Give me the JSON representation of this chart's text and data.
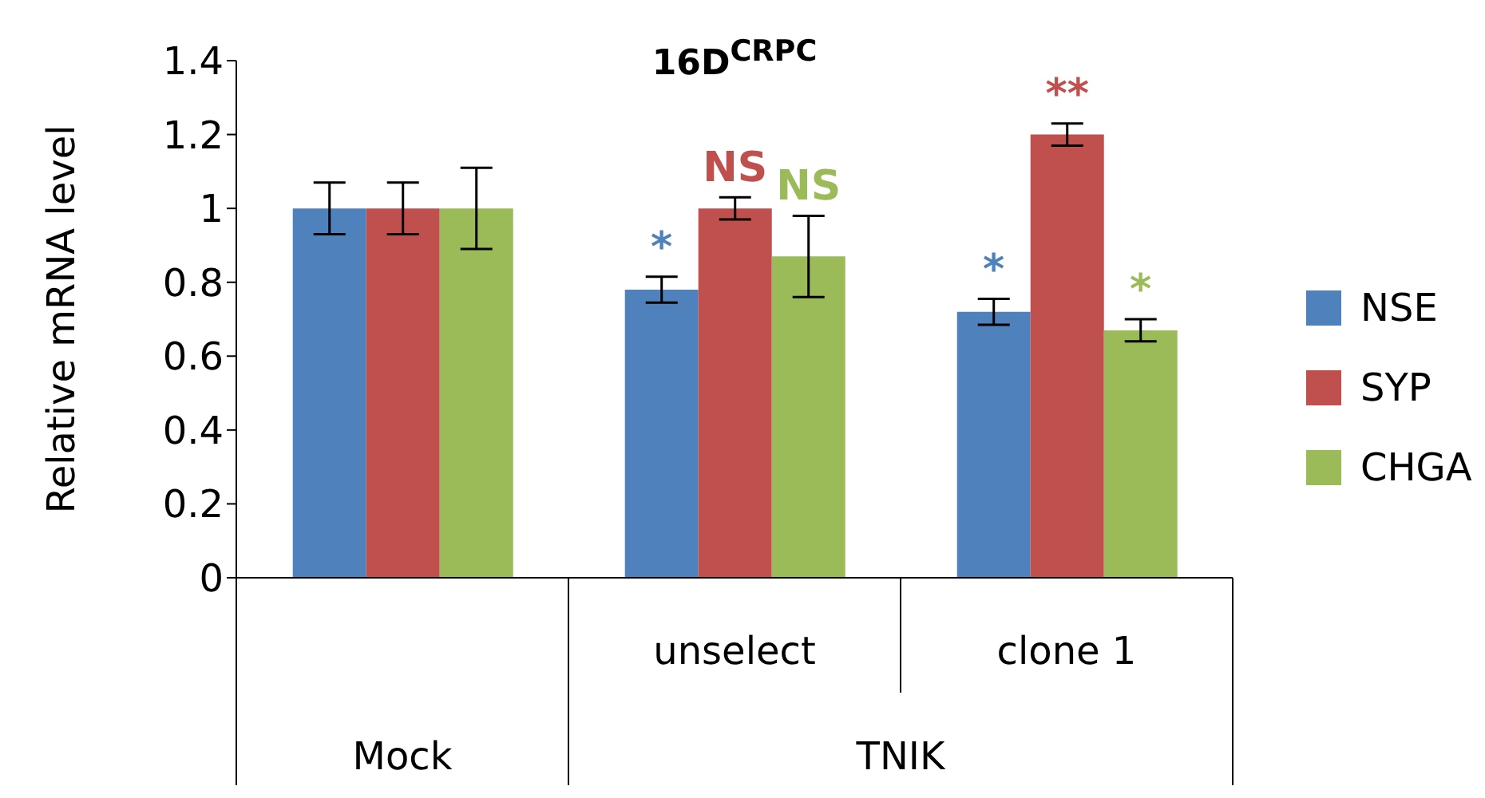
{
  "chart_data": {
    "type": "bar",
    "title": "16D$^{CRPC}$",
    "ylabel": "Relative mRNA level",
    "categories": [
      null,
      "unselect",
      "clone 1"
    ],
    "annotations": [
      "Mock",
      "TNIK"
    ],
    "series": [
      {
        "name": "NSE",
        "color": "#4f81bd",
        "values": [
          1,
          0.78,
          0.72
        ],
        "errors": [
          0.07,
          0.035,
          0.035
        ],
        "value_labels": [
          null,
          "*",
          "*"
        ]
      },
      {
        "name": "SYP",
        "color": "#c0504d",
        "values": [
          1,
          1.0,
          1.2
        ],
        "errors": [
          0.07,
          0.03,
          0.03
        ],
        "value_labels": [
          null,
          "NS",
          "**"
        ]
      },
      {
        "name": "CHGA",
        "color": "#9bbb59",
        "values": [
          1,
          0.87,
          0.67
        ],
        "errors": [
          0.11,
          0.11,
          0.03
        ],
        "value_labels": [
          null,
          "NS",
          "*"
        ]
      }
    ],
    "ylim": [
      0,
      1.4
    ],
    "yticks": [
      0,
      0.2,
      0.4,
      0.6,
      0.8,
      1,
      1.2,
      1.4
    ],
    "grid": false,
    "legend": "right"
  }
}
